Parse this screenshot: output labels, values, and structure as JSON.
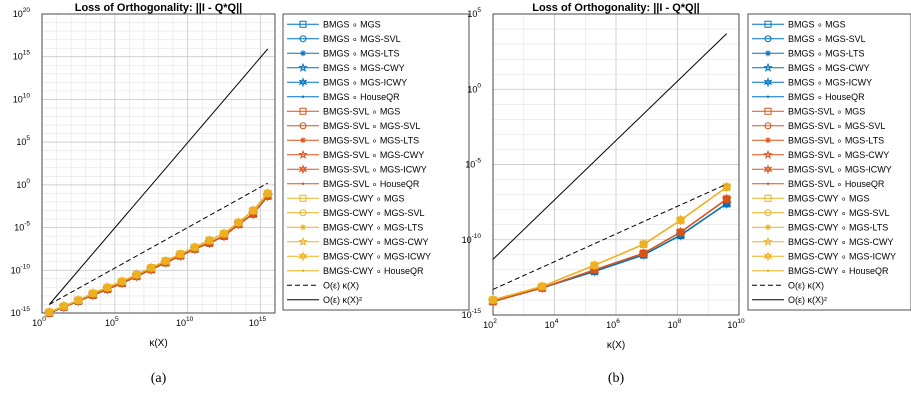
{
  "legend_entries": [
    {
      "label": "BMGS ∘ MGS",
      "color": "#0072bd",
      "marker": "square"
    },
    {
      "label": "BMGS ∘ MGS-SVL",
      "color": "#0072bd",
      "marker": "circle"
    },
    {
      "label": "BMGS ∘ MGS-LTS",
      "color": "#0072bd",
      "marker": "asterisk"
    },
    {
      "label": "BMGS ∘ MGS-CWY",
      "color": "#0072bd",
      "marker": "star"
    },
    {
      "label": "BMGS ∘ MGS-ICWY",
      "color": "#0072bd",
      "marker": "hexagram"
    },
    {
      "label": "BMGS ∘ HouseQR",
      "color": "#0072bd",
      "marker": "dot"
    },
    {
      "label": "BMGS-SVL ∘ MGS",
      "color": "#d95319",
      "marker": "square"
    },
    {
      "label": "BMGS-SVL ∘ MGS-SVL",
      "color": "#d95319",
      "marker": "circle"
    },
    {
      "label": "BMGS-SVL ∘ MGS-LTS",
      "color": "#d95319",
      "marker": "asterisk"
    },
    {
      "label": "BMGS-SVL ∘ MGS-CWY",
      "color": "#d95319",
      "marker": "star"
    },
    {
      "label": "BMGS-SVL ∘ MGS-ICWY",
      "color": "#d95319",
      "marker": "hexagram"
    },
    {
      "label": "BMGS-SVL ∘ HouseQR",
      "color": "#d95319",
      "marker": "dot"
    },
    {
      "label": "BMGS-CWY ∘ MGS",
      "color": "#edb120",
      "marker": "square"
    },
    {
      "label": "BMGS-CWY ∘ MGS-SVL",
      "color": "#edb120",
      "marker": "circle"
    },
    {
      "label": "BMGS-CWY ∘ MGS-LTS",
      "color": "#edb120",
      "marker": "asterisk"
    },
    {
      "label": "BMGS-CWY ∘ MGS-CWY",
      "color": "#edb120",
      "marker": "star"
    },
    {
      "label": "BMGS-CWY ∘ MGS-ICWY",
      "color": "#edb120",
      "marker": "hexagram"
    },
    {
      "label": "BMGS-CWY ∘ HouseQR",
      "color": "#edb120",
      "marker": "dot"
    },
    {
      "label": "O(ε) κ(X)",
      "color": "#000000",
      "marker": "dashed"
    },
    {
      "label": "O(ε) κ(X)²",
      "color": "#000000",
      "marker": "solid"
    }
  ],
  "chart_data": [
    {
      "type": "line",
      "caption": "(a)",
      "title": "Loss of Orthogonality: ||I - Q*Q||",
      "xlabel": "κ(X)",
      "ylabel": "",
      "xscale": "log",
      "yscale": "log",
      "xlim_log10": [
        0,
        16
      ],
      "ylim_log10": [
        -15,
        20
      ],
      "grid": true,
      "legend_position": "outside-right",
      "x_ticks": [
        {
          "base": "10",
          "exp": "0",
          "v": 0
        },
        {
          "base": "10",
          "exp": "5",
          "v": 5
        },
        {
          "base": "10",
          "exp": "10",
          "v": 10
        },
        {
          "base": "10",
          "exp": "15",
          "v": 15
        }
      ],
      "y_ticks": [
        {
          "base": "10",
          "exp": "-15",
          "v": -15
        },
        {
          "base": "10",
          "exp": "-10",
          "v": -10
        },
        {
          "base": "10",
          "exp": "-5",
          "v": -5
        },
        {
          "base": "10",
          "exp": "0",
          "v": 0
        },
        {
          "base": "10",
          "exp": "5",
          "v": 5
        },
        {
          "base": "10",
          "exp": "10",
          "v": 10
        },
        {
          "base": "10",
          "exp": "15",
          "v": 15
        },
        {
          "base": "10",
          "exp": "20",
          "v": 20
        }
      ],
      "x_log10": [
        0.5,
        1.5,
        2.5,
        3.5,
        4.5,
        5.5,
        6.5,
        7.5,
        8.5,
        9.5,
        10.5,
        11.5,
        12.5,
        13.5,
        14.5,
        15.5
      ],
      "series": [
        {
          "group": "BMGS",
          "color": "#0072bd",
          "y_log10": [
            -15.0,
            -14.3,
            -13.6,
            -12.9,
            -12.2,
            -11.5,
            -10.7,
            -9.9,
            -9.1,
            -8.3,
            -7.5,
            -6.8,
            -6.0,
            -4.6,
            -3.4,
            -1.3
          ]
        },
        {
          "group": "BMGS-SVL",
          "color": "#d95319",
          "y_log10": [
            -15.0,
            -14.3,
            -13.6,
            -12.9,
            -12.2,
            -11.5,
            -10.7,
            -9.9,
            -9.1,
            -8.3,
            -7.5,
            -6.8,
            -6.0,
            -4.6,
            -3.4,
            -1.3
          ]
        },
        {
          "group": "BMGS-CWY",
          "color": "#edb120",
          "y_log10": [
            -14.9,
            -14.2,
            -13.5,
            -12.7,
            -12.0,
            -11.3,
            -10.5,
            -9.7,
            -8.9,
            -8.1,
            -7.3,
            -6.5,
            -5.7,
            -4.4,
            -3.0,
            -1.0
          ]
        },
        {
          "name": "O(ε) κ(X)",
          "style": "dashed",
          "color": "#000000",
          "x_log10": [
            0.5,
            15.5
          ],
          "y_log10": [
            -14.0,
            0.2
          ]
        },
        {
          "name": "O(ε) κ(X)²",
          "style": "solid",
          "color": "#000000",
          "x_log10": [
            0.5,
            15.5
          ],
          "y_log10": [
            -14.0,
            15.9
          ]
        }
      ]
    },
    {
      "type": "line",
      "caption": "(b)",
      "title": "Loss of Orthogonality: ||I - Q*Q||",
      "xlabel": "κ(X)",
      "ylabel": "",
      "xscale": "log",
      "yscale": "log",
      "xlim_log10": [
        2,
        10
      ],
      "ylim_log10": [
        -15,
        5
      ],
      "grid": true,
      "legend_position": "outside-right",
      "x_ticks": [
        {
          "base": "10",
          "exp": "2",
          "v": 2
        },
        {
          "base": "10",
          "exp": "4",
          "v": 4
        },
        {
          "base": "10",
          "exp": "6",
          "v": 6
        },
        {
          "base": "10",
          "exp": "8",
          "v": 8
        },
        {
          "base": "10",
          "exp": "10",
          "v": 10
        }
      ],
      "y_ticks": [
        {
          "base": "10",
          "exp": "-15",
          "v": -15
        },
        {
          "base": "10",
          "exp": "-10",
          "v": -10
        },
        {
          "base": "10",
          "exp": "-5",
          "v": -5
        },
        {
          "base": "10",
          "exp": "0",
          "v": 0
        },
        {
          "base": "10",
          "exp": "5",
          "v": 5
        }
      ],
      "x_log10": [
        2.0,
        3.6,
        5.3,
        6.9,
        8.1,
        9.6
      ],
      "series": [
        {
          "group": "BMGS",
          "color": "#0072bd",
          "y_log10": [
            -14.1,
            -13.2,
            -12.1,
            -11.0,
            -9.7,
            -7.6
          ]
        },
        {
          "group": "BMGS-SVL",
          "color": "#d95319",
          "y_log10": [
            -14.1,
            -13.2,
            -12.0,
            -10.9,
            -9.5,
            -7.3
          ]
        },
        {
          "group": "BMGS-CWY",
          "color": "#edb120",
          "y_log10": [
            -14.0,
            -13.1,
            -11.7,
            -10.3,
            -8.7,
            -6.5
          ]
        },
        {
          "name": "O(ε) κ(X)",
          "style": "dashed",
          "color": "#000000",
          "x_log10": [
            2.0,
            9.6
          ],
          "y_log10": [
            -13.3,
            -6.3
          ]
        },
        {
          "name": "O(ε) κ(X)²",
          "style": "solid",
          "color": "#000000",
          "x_log10": [
            2.0,
            9.6
          ],
          "y_log10": [
            -11.3,
            3.7
          ]
        }
      ]
    }
  ]
}
